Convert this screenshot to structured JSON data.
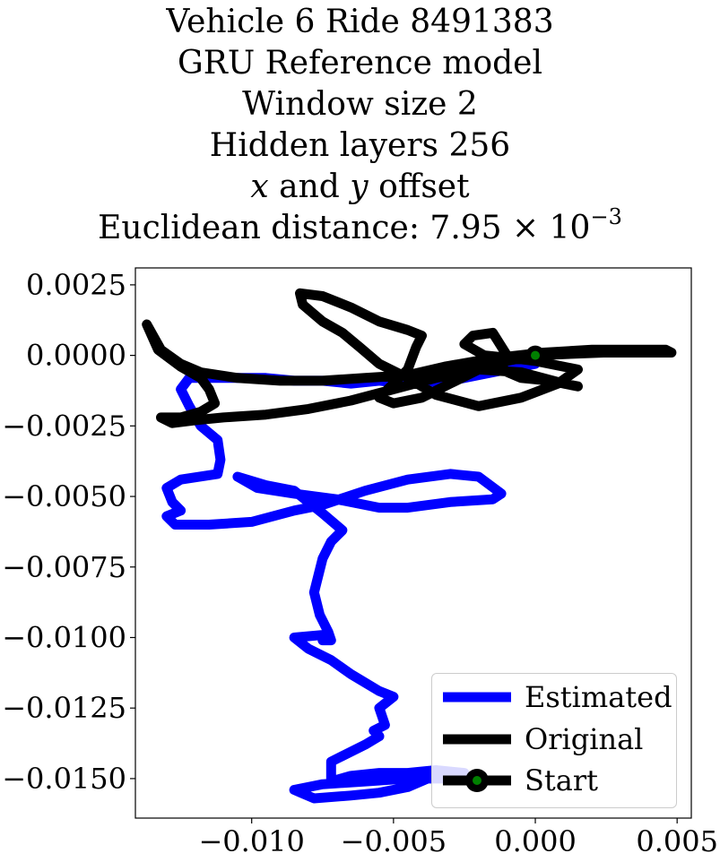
{
  "title": {
    "line1": "Vehicle 6 Ride 8491383",
    "line2": "GRU Reference model",
    "line3": "Window size 2",
    "line4": "Hidden layers 256",
    "line5_var_x": "x",
    "line5_and": " and ",
    "line5_var_y": "y",
    "line5_rest": " offset",
    "line6_prefix": "Euclidean distance: 7.95 × 10",
    "line6_exp": "−3"
  },
  "legend": {
    "estimated": "Estimated",
    "original": "Original",
    "start": "Start"
  },
  "chart_data": {
    "type": "line",
    "xlim": [
      -0.0141,
      0.0055
    ],
    "ylim": [
      -0.0164,
      0.0031
    ],
    "xticks": [
      -0.01,
      -0.005,
      0.0,
      0.005
    ],
    "xtick_labels": [
      "−0.010",
      "−0.005",
      "0.000",
      "0.005"
    ],
    "yticks": [
      0.0025,
      0.0,
      -0.0025,
      -0.005,
      -0.0075,
      -0.01,
      -0.0125,
      -0.015
    ],
    "ytick_labels": [
      "0.0025",
      "0.0000",
      "−0.0025",
      "−0.0050",
      "−0.0075",
      "−0.0100",
      "−0.0125",
      "−0.0150"
    ],
    "grid": false,
    "legend_position": "lower-right",
    "colors": {
      "estimated": "#0000ff",
      "original": "#000000",
      "start_marker": "#008000"
    },
    "series": [
      {
        "name": "Estimated",
        "x": [
          0.0,
          -0.0015,
          -0.003,
          -0.0045,
          -0.0055,
          -0.0065,
          -0.0075,
          -0.0085,
          -0.0095,
          -0.0105,
          -0.0115,
          -0.0122,
          -0.0125,
          -0.0122,
          -0.0118,
          -0.0112,
          -0.0111,
          -0.0112,
          -0.0125,
          -0.013,
          -0.0128,
          -0.0125,
          -0.013,
          -0.0127,
          -0.0115,
          -0.01,
          -0.0085,
          -0.0075,
          -0.006,
          -0.0045,
          -0.003,
          -0.002,
          -0.0012,
          -0.0015,
          -0.003,
          -0.0045,
          -0.0055,
          -0.007,
          -0.0085,
          -0.0098,
          -0.0105,
          -0.0095,
          -0.0085,
          -0.0075,
          -0.0068,
          -0.0072,
          -0.0075,
          -0.0078,
          -0.0076,
          -0.0073,
          -0.0072,
          -0.0075,
          -0.0074,
          -0.0085,
          -0.008,
          -0.0072,
          -0.0065,
          -0.0055,
          -0.005,
          -0.0055,
          -0.0053,
          -0.0057,
          -0.0055,
          -0.006,
          -0.0068,
          -0.0072,
          -0.0072,
          -0.0065,
          -0.0055,
          -0.0045,
          -0.0035,
          -0.0025,
          -0.003,
          -0.0045,
          -0.006,
          -0.0075,
          -0.0085,
          -0.0078,
          -0.0065,
          -0.0055,
          -0.0045,
          -0.0038,
          -0.0045
        ],
        "y": [
          -0.0003,
          -0.0006,
          -0.0009,
          -0.001,
          -0.0009,
          -0.001,
          -0.0009,
          -0.0009,
          -0.0008,
          -0.0008,
          -0.0008,
          -0.0008,
          -0.0012,
          -0.0018,
          -0.0025,
          -0.003,
          -0.0037,
          -0.0042,
          -0.0044,
          -0.0047,
          -0.0052,
          -0.0055,
          -0.0057,
          -0.006,
          -0.006,
          -0.0059,
          -0.0055,
          -0.0053,
          -0.0048,
          -0.0044,
          -0.0042,
          -0.0043,
          -0.0049,
          -0.0051,
          -0.0052,
          -0.0054,
          -0.0054,
          -0.0051,
          -0.0049,
          -0.0047,
          -0.0043,
          -0.0046,
          -0.0048,
          -0.0056,
          -0.0062,
          -0.0066,
          -0.0072,
          -0.0084,
          -0.0092,
          -0.0098,
          -0.0101,
          -0.0101,
          -0.0099,
          -0.01,
          -0.0104,
          -0.0108,
          -0.0113,
          -0.0119,
          -0.0121,
          -0.0125,
          -0.0131,
          -0.0133,
          -0.0135,
          -0.0138,
          -0.0142,
          -0.0144,
          -0.0151,
          -0.0149,
          -0.0148,
          -0.0148,
          -0.0147,
          -0.0148,
          -0.015,
          -0.015,
          -0.0151,
          -0.0152,
          -0.0154,
          -0.0157,
          -0.0156,
          -0.0155,
          -0.0153,
          -0.015,
          -0.0149
        ]
      },
      {
        "name": "Original",
        "x": [
          0.0,
          0.0024,
          0.0048,
          0.0046,
          0.002,
          0.0003,
          -0.0015,
          -0.0032,
          -0.0045,
          -0.006,
          -0.0075,
          -0.009,
          -0.0105,
          -0.0118,
          -0.0125,
          -0.0132,
          -0.0137,
          -0.0133,
          -0.0125,
          -0.0118,
          -0.0115,
          -0.0113,
          -0.0118,
          -0.0125,
          -0.0132,
          -0.0128,
          -0.012,
          -0.011,
          -0.0095,
          -0.008,
          -0.0065,
          -0.005,
          -0.0035,
          -0.002,
          -0.0005,
          0.001,
          0.0015,
          0.0005,
          -0.0005,
          -0.0012,
          -0.001,
          -0.0015,
          -0.0022,
          -0.0025,
          -0.0018,
          -0.0008,
          0.0,
          0.0015,
          0.0008,
          -0.0005,
          -0.002,
          -0.0035,
          -0.0045,
          -0.0055,
          -0.0062,
          -0.0068,
          -0.0075,
          -0.0082,
          -0.0083,
          -0.0075,
          -0.0065,
          -0.0055,
          -0.0045,
          -0.004,
          -0.0042,
          -0.0045,
          -0.0052,
          -0.0055,
          -0.005,
          -0.004,
          -0.003,
          -0.002,
          -0.001,
          0.0
        ],
        "y": [
          0.0,
          0.0001,
          0.0001,
          0.0002,
          0.0002,
          0.0001,
          -0.0001,
          -0.0004,
          -0.0007,
          -0.0008,
          -0.0009,
          -0.0009,
          -0.0008,
          -0.0006,
          -0.0003,
          0.0002,
          0.0011,
          0.0002,
          -0.0004,
          -0.0008,
          -0.0012,
          -0.0017,
          -0.002,
          -0.0022,
          -0.0022,
          -0.0024,
          -0.0023,
          -0.0022,
          -0.0021,
          -0.0019,
          -0.0016,
          -0.0012,
          -0.0008,
          -0.0005,
          -0.0006,
          -0.001,
          -0.0011,
          -0.0009,
          -0.0008,
          -0.0005,
          0.0,
          0.0008,
          0.0007,
          0.0004,
          0.0,
          -0.0001,
          -0.0002,
          -0.0005,
          -0.001,
          -0.0015,
          -0.0018,
          -0.0014,
          -0.0008,
          -0.0003,
          0.0003,
          0.0008,
          0.0012,
          0.0018,
          0.0022,
          0.0021,
          0.0017,
          0.0012,
          0.0009,
          0.0007,
          0.0003,
          -0.0005,
          -0.0012,
          -0.0015,
          -0.0017,
          -0.0015,
          -0.001,
          -0.0005,
          -0.0002,
          0.0
        ]
      }
    ],
    "start_point": {
      "x": 0.0,
      "y": 0.0
    }
  }
}
